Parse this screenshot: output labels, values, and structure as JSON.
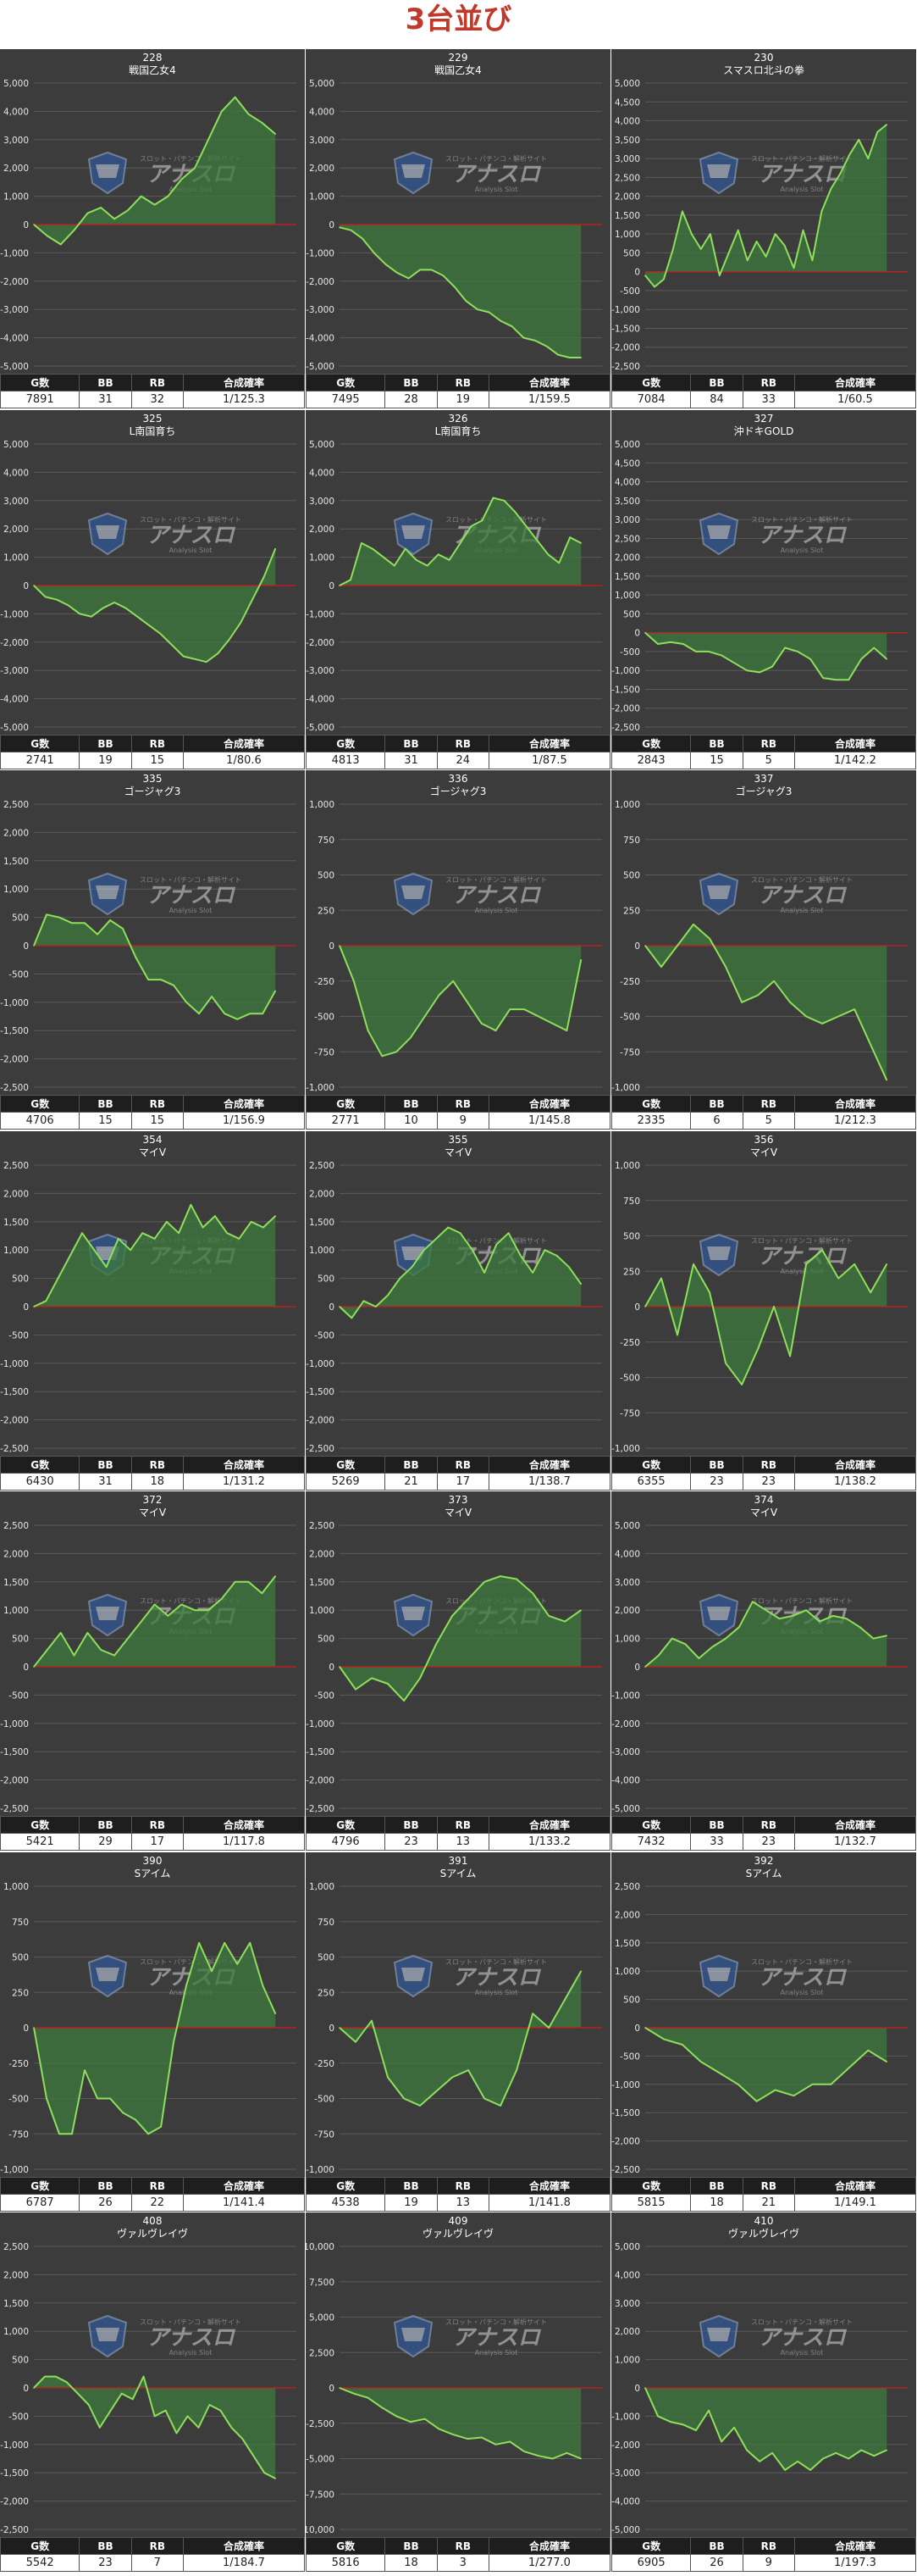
{
  "page_title": "3台並び",
  "stats_headers": [
    "G数",
    "BB",
    "RB",
    "合成確率"
  ],
  "watermark": {
    "top_text": "スロット・パチンコ・解析サイト",
    "brand": "アナスロ",
    "sub": "Analysis Slot",
    "icon": "shield-logo-icon"
  },
  "colors": {
    "background": "#3c3c3c",
    "grid": "#5a5a5a",
    "line": "#8ee05a",
    "fill": "#3c7a3c",
    "zero_line": "#d01818",
    "title": "#c0392b"
  },
  "chart_data": [
    {
      "type": "area",
      "machine": "228",
      "title": "戦国乙女4",
      "ylim": [
        -5000,
        5000
      ],
      "yticks": [
        5000,
        4000,
        3000,
        2000,
        1000,
        0,
        -1000,
        -2000,
        -3000,
        -4000,
        -5000
      ],
      "values": [
        0,
        -400,
        -700,
        -200,
        400,
        600,
        200,
        500,
        1000,
        700,
        1000,
        1600,
        2000,
        3000,
        4000,
        4500,
        3900,
        3600,
        3200
      ],
      "stats": {
        "games": "7891",
        "bb": "31",
        "rb": "32",
        "rate": "1/125.3"
      }
    },
    {
      "type": "area",
      "machine": "229",
      "title": "戦国乙女4",
      "ylim": [
        -5000,
        5000
      ],
      "yticks": [
        5000,
        4000,
        3000,
        2000,
        1000,
        0,
        -1000,
        -2000,
        -3000,
        -4000,
        -5000
      ],
      "values": [
        -100,
        -200,
        -500,
        -1000,
        -1400,
        -1700,
        -1900,
        -1600,
        -1600,
        -1800,
        -2200,
        -2700,
        -3000,
        -3100,
        -3400,
        -3600,
        -4000,
        -4100,
        -4300,
        -4600,
        -4700,
        -4700
      ],
      "stats": {
        "games": "7495",
        "bb": "28",
        "rb": "19",
        "rate": "1/159.5"
      }
    },
    {
      "type": "area",
      "machine": "230",
      "title": "スマスロ北斗の拳",
      "ylim": [
        -2500,
        5000
      ],
      "yticks": [
        5000,
        4500,
        4000,
        3500,
        3000,
        2500,
        2000,
        1500,
        1000,
        500,
        0,
        -500,
        -1000,
        -1500,
        -2000,
        -2500
      ],
      "values": [
        -100,
        -400,
        -200,
        600,
        1600,
        1000,
        600,
        1000,
        -100,
        500,
        1100,
        300,
        800,
        400,
        1000,
        700,
        100,
        1100,
        300,
        1600,
        2200,
        2600,
        3100,
        3500,
        3000,
        3700,
        3900
      ],
      "stats": {
        "games": "7084",
        "bb": "84",
        "rb": "33",
        "rate": "1/60.5"
      }
    },
    {
      "type": "area",
      "machine": "325",
      "title": "L南国育ち",
      "ylim": [
        -5000,
        5000
      ],
      "yticks": [
        5000,
        4000,
        3000,
        2000,
        1000,
        0,
        -1000,
        -2000,
        -3000,
        -4000,
        -5000
      ],
      "values": [
        0,
        -400,
        -500,
        -700,
        -1000,
        -1100,
        -800,
        -600,
        -800,
        -1100,
        -1400,
        -1700,
        -2100,
        -2500,
        -2600,
        -2700,
        -2400,
        -1900,
        -1300,
        -500,
        300,
        1300
      ],
      "stats": {
        "games": "2741",
        "bb": "19",
        "rb": "15",
        "rate": "1/80.6"
      }
    },
    {
      "type": "area",
      "machine": "326",
      "title": "L南国育ち",
      "ylim": [
        -5000,
        5000
      ],
      "yticks": [
        5000,
        4000,
        3000,
        2000,
        1000,
        0,
        -1000,
        -2000,
        -3000,
        -4000,
        -5000
      ],
      "values": [
        0,
        200,
        1500,
        1300,
        1000,
        700,
        1300,
        900,
        700,
        1100,
        900,
        1500,
        2100,
        2300,
        3100,
        3000,
        2600,
        2100,
        1600,
        1100,
        800,
        1700,
        1500
      ],
      "stats": {
        "games": "4813",
        "bb": "31",
        "rb": "24",
        "rate": "1/87.5"
      }
    },
    {
      "type": "area",
      "machine": "327",
      "title": "沖ドキGOLD",
      "ylim": [
        -2500,
        5000
      ],
      "yticks": [
        5000,
        4500,
        4000,
        3500,
        3000,
        2500,
        2000,
        1500,
        1000,
        500,
        0,
        -500,
        -1000,
        -1500,
        -2000,
        -2500
      ],
      "values": [
        0,
        -300,
        -250,
        -300,
        -500,
        -500,
        -600,
        -800,
        -1000,
        -1050,
        -900,
        -400,
        -500,
        -700,
        -1200,
        -1250,
        -1250,
        -700,
        -400,
        -700
      ],
      "stats": {
        "games": "2843",
        "bb": "15",
        "rb": "5",
        "rate": "1/142.2"
      }
    },
    {
      "type": "area",
      "machine": "335",
      "title": "ゴージャグ3",
      "ylim": [
        -2500,
        2500
      ],
      "yticks": [
        2500,
        2000,
        1500,
        1000,
        500,
        0,
        -500,
        -1000,
        -1500,
        -2000,
        -2500
      ],
      "values": [
        0,
        550,
        500,
        400,
        400,
        200,
        450,
        300,
        -200,
        -600,
        -600,
        -700,
        -1000,
        -1200,
        -900,
        -1200,
        -1300,
        -1200,
        -1200,
        -800
      ],
      "stats": {
        "games": "4706",
        "bb": "15",
        "rb": "15",
        "rate": "1/156.9"
      }
    },
    {
      "type": "area",
      "machine": "336",
      "title": "ゴージャグ3",
      "ylim": [
        -1000,
        1000
      ],
      "yticks": [
        1000,
        750,
        500,
        250,
        0,
        -250,
        -500,
        -750,
        -1000
      ],
      "values": [
        0,
        -250,
        -600,
        -780,
        -750,
        -650,
        -500,
        -350,
        -250,
        -400,
        -550,
        -600,
        -450,
        -450,
        -500,
        -550,
        -600,
        -100
      ],
      "stats": {
        "games": "2771",
        "bb": "10",
        "rb": "9",
        "rate": "1/145.8"
      }
    },
    {
      "type": "area",
      "machine": "337",
      "title": "ゴージャグ3",
      "ylim": [
        -1000,
        1000
      ],
      "yticks": [
        1000,
        750,
        500,
        250,
        0,
        -250,
        -500,
        -750,
        -1000
      ],
      "values": [
        0,
        -150,
        0,
        150,
        50,
        -150,
        -400,
        -350,
        -250,
        -400,
        -500,
        -550,
        -500,
        -450,
        -700,
        -950
      ],
      "stats": {
        "games": "2335",
        "bb": "6",
        "rb": "5",
        "rate": "1/212.3"
      }
    },
    {
      "type": "area",
      "machine": "354",
      "title": "マイV",
      "ylim": [
        -2500,
        2500
      ],
      "yticks": [
        2500,
        2000,
        1500,
        1000,
        500,
        0,
        -500,
        -1000,
        -1500,
        -2000,
        -2500
      ],
      "values": [
        0,
        100,
        500,
        900,
        1300,
        1000,
        700,
        1200,
        1000,
        1300,
        1200,
        1500,
        1300,
        1800,
        1400,
        1600,
        1300,
        1200,
        1500,
        1400,
        1600
      ],
      "stats": {
        "games": "6430",
        "bb": "31",
        "rb": "18",
        "rate": "1/131.2"
      }
    },
    {
      "type": "area",
      "machine": "355",
      "title": "マイV",
      "ylim": [
        -2500,
        2500
      ],
      "yticks": [
        2500,
        2000,
        1500,
        1000,
        500,
        0,
        -500,
        -1000,
        -1500,
        -2000,
        -2500
      ],
      "values": [
        0,
        -200,
        100,
        0,
        200,
        500,
        700,
        1000,
        1200,
        1400,
        1300,
        1000,
        600,
        1100,
        1300,
        900,
        600,
        1000,
        900,
        700,
        400
      ],
      "stats": {
        "games": "5269",
        "bb": "21",
        "rb": "17",
        "rate": "1/138.7"
      }
    },
    {
      "type": "area",
      "machine": "356",
      "title": "マイV",
      "ylim": [
        -1000,
        1000
      ],
      "yticks": [
        1000,
        750,
        500,
        250,
        0,
        -250,
        -500,
        -750,
        -1000
      ],
      "values": [
        0,
        200,
        -200,
        300,
        100,
        -400,
        -550,
        -300,
        0,
        -350,
        300,
        400,
        200,
        300,
        100,
        300
      ],
      "stats": {
        "games": "6355",
        "bb": "23",
        "rb": "23",
        "rate": "1/138.2"
      }
    },
    {
      "type": "area",
      "machine": "372",
      "title": "マイV",
      "ylim": [
        -2500,
        2500
      ],
      "yticks": [
        2500,
        2000,
        1500,
        1000,
        500,
        0,
        -500,
        -1000,
        -1500,
        -2000,
        -2500
      ],
      "values": [
        0,
        300,
        600,
        200,
        600,
        300,
        200,
        500,
        800,
        1100,
        900,
        1100,
        1000,
        1000,
        1200,
        1500,
        1500,
        1300,
        1600
      ],
      "stats": {
        "games": "5421",
        "bb": "29",
        "rb": "17",
        "rate": "1/117.8"
      }
    },
    {
      "type": "area",
      "machine": "373",
      "title": "マイV",
      "ylim": [
        -2500,
        2500
      ],
      "yticks": [
        2500,
        2000,
        1500,
        1000,
        500,
        0,
        -500,
        -1000,
        -1500,
        -2000,
        -2500
      ],
      "values": [
        0,
        -400,
        -200,
        -300,
        -600,
        -200,
        400,
        900,
        1200,
        1500,
        1600,
        1550,
        1300,
        900,
        800,
        1000
      ],
      "stats": {
        "games": "4796",
        "bb": "23",
        "rb": "13",
        "rate": "1/133.2"
      }
    },
    {
      "type": "area",
      "machine": "374",
      "title": "マイV",
      "ylim": [
        -5000,
        5000
      ],
      "yticks": [
        5000,
        4000,
        3000,
        2000,
        1000,
        0,
        -1000,
        -2000,
        -3000,
        -4000,
        -5000
      ],
      "values": [
        0,
        400,
        1000,
        800,
        300,
        700,
        1000,
        1400,
        2300,
        2000,
        1700,
        1800,
        2000,
        1600,
        1800,
        1700,
        1400,
        1000,
        1100
      ],
      "stats": {
        "games": "7432",
        "bb": "33",
        "rb": "23",
        "rate": "1/132.7"
      }
    },
    {
      "type": "area",
      "machine": "390",
      "title": "Sアイム",
      "ylim": [
        -1000,
        1000
      ],
      "yticks": [
        1000,
        750,
        500,
        250,
        0,
        -250,
        -500,
        -750,
        -1000
      ],
      "values": [
        0,
        -500,
        -750,
        -750,
        -300,
        -500,
        -500,
        -600,
        -650,
        -750,
        -700,
        -100,
        300,
        600,
        400,
        600,
        450,
        600,
        300,
        100
      ],
      "stats": {
        "games": "6787",
        "bb": "26",
        "rb": "22",
        "rate": "1/141.4"
      }
    },
    {
      "type": "area",
      "machine": "391",
      "title": "Sアイム",
      "ylim": [
        -1000,
        1000
      ],
      "yticks": [
        1000,
        750,
        500,
        250,
        0,
        -250,
        -500,
        -750,
        -1000
      ],
      "values": [
        0,
        -100,
        50,
        -350,
        -500,
        -550,
        -450,
        -350,
        -300,
        -500,
        -550,
        -300,
        100,
        0,
        200,
        400
      ],
      "stats": {
        "games": "4538",
        "bb": "19",
        "rb": "13",
        "rate": "1/141.8"
      }
    },
    {
      "type": "area",
      "machine": "392",
      "title": "Sアイム",
      "ylim": [
        -2500,
        2500
      ],
      "yticks": [
        2500,
        2000,
        1500,
        1000,
        500,
        0,
        -500,
        -1000,
        -1500,
        -2000,
        -2500
      ],
      "values": [
        0,
        -200,
        -300,
        -600,
        -800,
        -1000,
        -1300,
        -1100,
        -1200,
        -1000,
        -1000,
        -700,
        -400,
        -600
      ],
      "stats": {
        "games": "5815",
        "bb": "18",
        "rb": "21",
        "rate": "1/149.1"
      }
    },
    {
      "type": "area",
      "machine": "408",
      "title": "ヴァルヴレイヴ",
      "ylim": [
        -2500,
        2500
      ],
      "yticks": [
        2500,
        2000,
        1500,
        1000,
        500,
        0,
        -500,
        -1000,
        -1500,
        -2000,
        -2500
      ],
      "values": [
        0,
        200,
        200,
        100,
        -100,
        -300,
        -700,
        -400,
        -100,
        -200,
        200,
        -500,
        -400,
        -800,
        -500,
        -700,
        -300,
        -400,
        -700,
        -900,
        -1200,
        -1500,
        -1600
      ],
      "stats": {
        "games": "5542",
        "bb": "23",
        "rb": "7",
        "rate": "1/184.7"
      }
    },
    {
      "type": "area",
      "machine": "409",
      "title": "ヴァルヴレイヴ",
      "ylim": [
        -10000,
        10000
      ],
      "yticks": [
        10000,
        7500,
        5000,
        2500,
        0,
        -2500,
        -5000,
        -7500,
        -10000
      ],
      "values": [
        0,
        -400,
        -700,
        -1400,
        -2000,
        -2400,
        -2200,
        -2900,
        -3300,
        -3600,
        -3500,
        -4000,
        -3800,
        -4500,
        -4800,
        -5000,
        -4600,
        -5000
      ],
      "stats": {
        "games": "5816",
        "bb": "18",
        "rb": "3",
        "rate": "1/277.0"
      }
    },
    {
      "type": "area",
      "machine": "410",
      "title": "ヴァルヴレイヴ",
      "ylim": [
        -5000,
        5000
      ],
      "yticks": [
        5000,
        4000,
        3000,
        2000,
        1000,
        0,
        -1000,
        -2000,
        -3000,
        -4000,
        -5000
      ],
      "values": [
        0,
        -1000,
        -1200,
        -1300,
        -1500,
        -800,
        -1900,
        -1400,
        -2200,
        -2600,
        -2300,
        -2900,
        -2600,
        -2900,
        -2500,
        -2300,
        -2500,
        -2200,
        -2400,
        -2200
      ],
      "stats": {
        "games": "6905",
        "bb": "26",
        "rb": "9",
        "rate": "1/197.3"
      }
    }
  ]
}
